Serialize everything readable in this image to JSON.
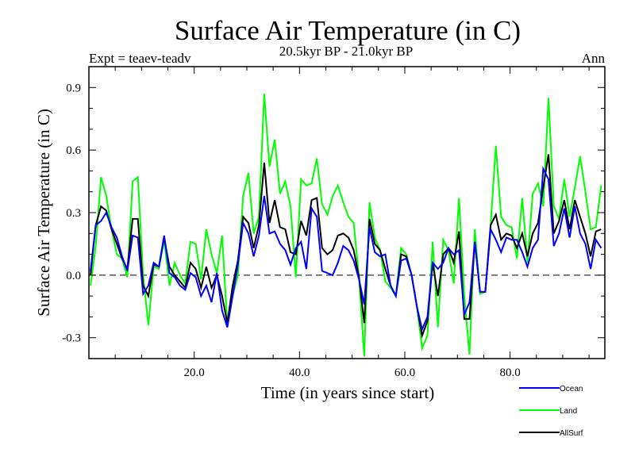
{
  "chart_data": {
    "type": "line",
    "title": "Surface Air Temperature (in C)",
    "subtitle": "20.5kyr BP - 21.0kyr BP",
    "left_note": "Expt = teaev-teadv",
    "right_note": "Ann",
    "xlabel": "Time (in years since start)",
    "ylabel": "Surface Air Temperature (in C)",
    "xlim": [
      0,
      98
    ],
    "ylim": [
      -0.4,
      1.0
    ],
    "x_ticks": [
      20,
      40,
      60,
      80
    ],
    "x_tick_labels": [
      "20.0",
      "40.0",
      "60.0",
      "80.0"
    ],
    "x_minor_step": 5,
    "y_ticks": [
      -0.3,
      0.0,
      0.3,
      0.6,
      0.9
    ],
    "y_tick_labels": [
      "-0.3",
      "0.0",
      "0.3",
      "0.6",
      "0.9"
    ],
    "y_minor_step": 0.1,
    "zero_line": "dashed",
    "grid": false,
    "legend_position": "bottom-right",
    "x_start": 0.3,
    "x_step": 1,
    "series": [
      {
        "name": "Ocean",
        "color": "#0000ff",
        "values": [
          0.02,
          0.24,
          0.26,
          0.3,
          0.23,
          0.18,
          0.09,
          0.02,
          0.19,
          0.18,
          -0.09,
          -0.05,
          0.06,
          0.04,
          0.19,
          0.01,
          -0.01,
          -0.05,
          -0.07,
          0.01,
          -0.01,
          -0.1,
          -0.05,
          -0.13,
          0.01,
          -0.17,
          -0.25,
          -0.1,
          0.05,
          0.25,
          0.2,
          0.09,
          0.19,
          0.38,
          0.2,
          0.21,
          0.15,
          0.12,
          0.05,
          0.13,
          0.16,
          0.03,
          0.32,
          0.28,
          0.02,
          0.01,
          0.0,
          0.06,
          0.14,
          0.12,
          0.07,
          -0.02,
          -0.14,
          0.23,
          0.11,
          0.09,
          0.1,
          -0.05,
          -0.1,
          0.07,
          0.08,
          0.0,
          -0.15,
          -0.26,
          -0.2,
          0.06,
          0.03,
          0.06,
          0.13,
          0.1,
          0.12,
          -0.19,
          -0.13,
          0.16,
          -0.08,
          -0.08,
          0.22,
          0.17,
          0.11,
          0.18,
          0.17,
          0.17,
          0.11,
          0.04,
          0.13,
          0.17,
          0.51,
          0.46,
          0.14,
          0.2,
          0.32,
          0.18,
          0.33,
          0.2,
          0.15,
          0.03,
          0.17,
          0.13
        ]
      },
      {
        "name": "Land",
        "color": "#00ff00",
        "values": [
          -0.05,
          0.14,
          0.47,
          0.38,
          0.22,
          0.1,
          0.08,
          -0.01,
          0.45,
          0.47,
          0.0,
          -0.24,
          0.04,
          0.03,
          0.17,
          -0.05,
          0.06,
          0.0,
          -0.04,
          0.16,
          0.15,
          -0.02,
          0.22,
          0.1,
          0.01,
          0.19,
          -0.24,
          -0.1,
          0.0,
          0.38,
          0.49,
          0.2,
          0.28,
          0.87,
          0.52,
          0.65,
          0.39,
          0.45,
          0.33,
          -0.01,
          0.46,
          0.43,
          0.44,
          0.56,
          0.34,
          0.29,
          0.38,
          0.43,
          0.35,
          0.28,
          0.25,
          -0.01,
          -0.39,
          0.35,
          0.18,
          0.12,
          -0.03,
          -0.06,
          -0.1,
          0.13,
          0.1,
          0.0,
          -0.15,
          -0.35,
          -0.29,
          0.16,
          -0.25,
          0.17,
          0.12,
          -0.04,
          0.37,
          -0.1,
          -0.38,
          0.22,
          -0.09,
          -0.08,
          0.24,
          0.62,
          0.28,
          0.24,
          0.23,
          0.08,
          0.37,
          0.06,
          0.39,
          0.44,
          0.33,
          0.85,
          0.33,
          0.27,
          0.46,
          0.28,
          0.42,
          0.57,
          0.4,
          0.22,
          0.23,
          0.43
        ]
      },
      {
        "name": "AllSurf",
        "color": "#000000",
        "values": [
          0.0,
          0.24,
          0.33,
          0.31,
          0.22,
          0.15,
          0.08,
          0.03,
          0.27,
          0.27,
          -0.05,
          -0.1,
          0.05,
          0.04,
          0.18,
          0.04,
          0.0,
          -0.03,
          -0.06,
          0.06,
          0.03,
          -0.06,
          0.04,
          -0.06,
          0.0,
          -0.1,
          -0.23,
          -0.05,
          0.07,
          0.28,
          0.25,
          0.13,
          0.24,
          0.54,
          0.25,
          0.36,
          0.23,
          0.22,
          0.11,
          0.1,
          0.26,
          0.19,
          0.36,
          0.37,
          0.13,
          0.1,
          0.12,
          0.19,
          0.2,
          0.18,
          0.12,
          -0.01,
          -0.23,
          0.27,
          0.15,
          0.12,
          0.03,
          -0.05,
          -0.1,
          0.1,
          0.09,
          0.0,
          -0.15,
          -0.29,
          -0.22,
          0.06,
          -0.1,
          0.1,
          0.13,
          0.06,
          0.21,
          -0.21,
          -0.21,
          0.16,
          -0.08,
          -0.08,
          0.24,
          0.29,
          0.17,
          0.2,
          0.19,
          0.13,
          0.2,
          0.09,
          0.2,
          0.25,
          0.42,
          0.58,
          0.2,
          0.26,
          0.36,
          0.22,
          0.36,
          0.28,
          0.2,
          0.09,
          0.21,
          0.22
        ]
      }
    ]
  }
}
